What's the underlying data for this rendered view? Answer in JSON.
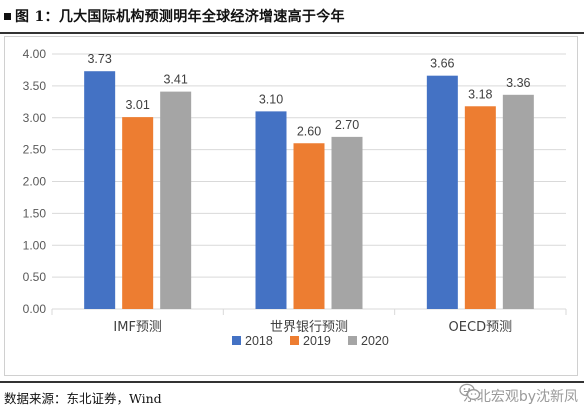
{
  "figure": {
    "title": "图 1：几大国际机构预测明年全球经济增速高于今年",
    "source": "数据来源：东北证券，Wind",
    "watermark": "东北宏观by沈新凤"
  },
  "chart_data": {
    "type": "bar",
    "title": "",
    "xlabel": "",
    "ylabel": "",
    "categories": [
      "IMF预测",
      "世界银行预测",
      "OECD预测"
    ],
    "series": [
      {
        "name": "2018",
        "color": "#4472C4",
        "values": [
          3.73,
          3.1,
          3.66
        ],
        "labels": [
          "3.73",
          "3.10",
          "3.66"
        ]
      },
      {
        "name": "2019",
        "color": "#ED7D31",
        "values": [
          3.01,
          2.6,
          3.18
        ],
        "labels": [
          "3.01",
          "2.60",
          "3.18"
        ]
      },
      {
        "name": "2020",
        "color": "#A5A5A5",
        "values": [
          3.41,
          2.7,
          3.36
        ],
        "labels": [
          "3.41",
          "2.70",
          "3.36"
        ]
      }
    ],
    "ylim": [
      0,
      4
    ],
    "yticks": [
      "0.00",
      "0.50",
      "1.00",
      "1.50",
      "2.00",
      "2.50",
      "3.00",
      "3.50",
      "4.00"
    ],
    "grid": true,
    "legend": "bottom"
  }
}
